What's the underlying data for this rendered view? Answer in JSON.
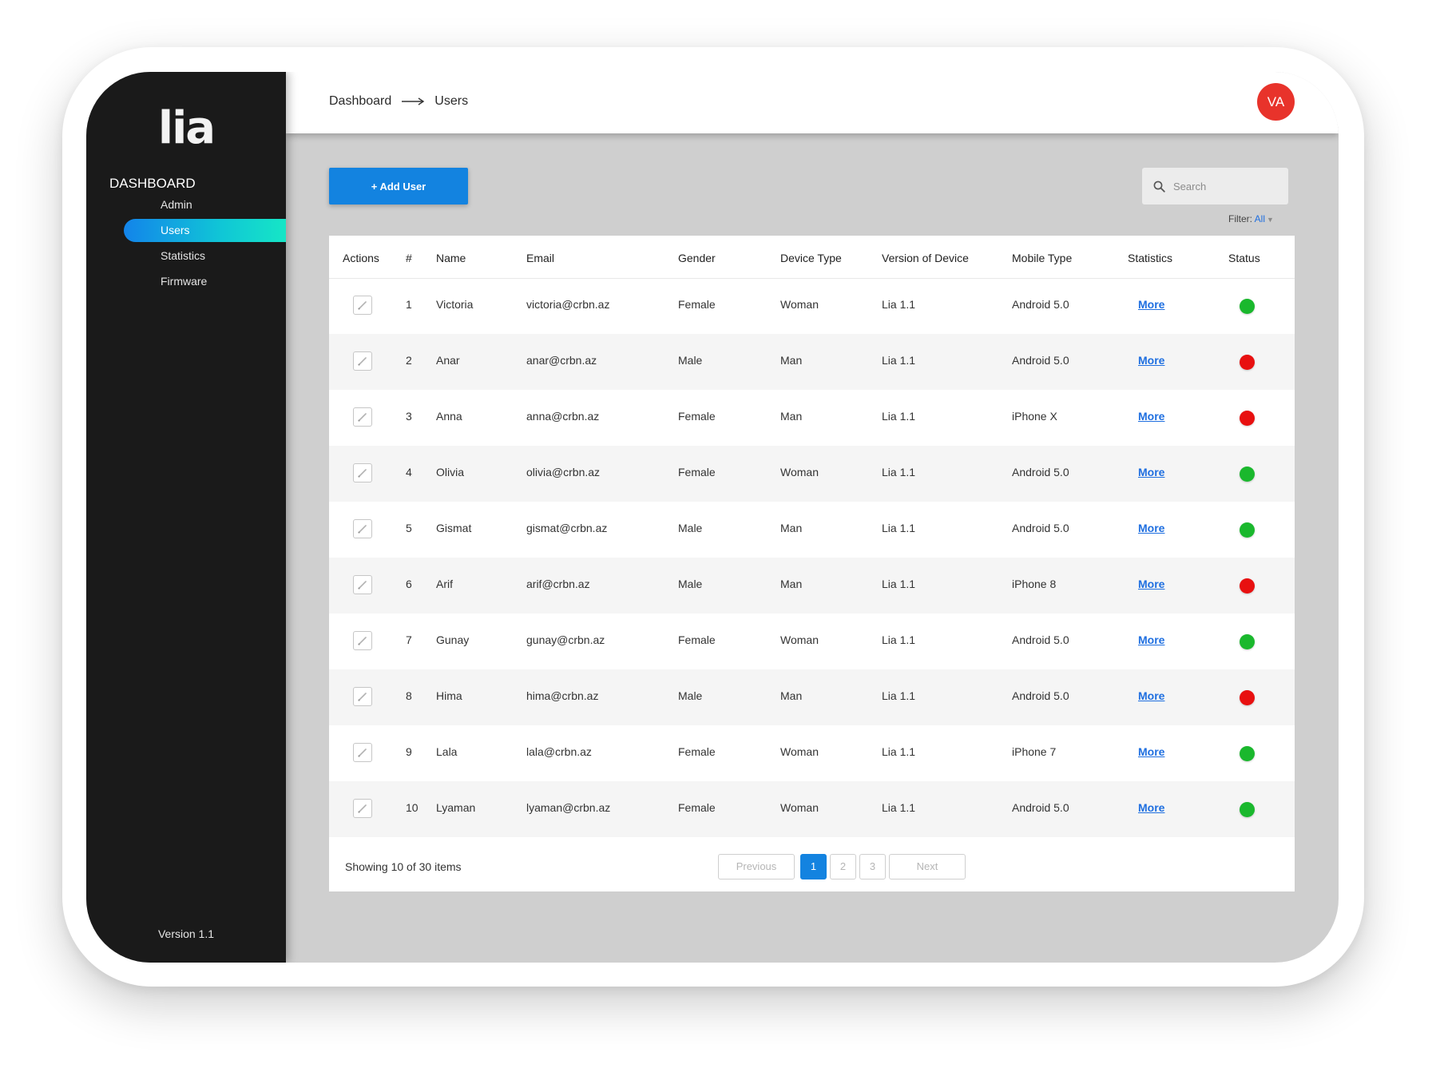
{
  "colors": {
    "accent": "#1383e0",
    "status_online": "#1ab82d",
    "status_offline": "#e81010",
    "avatar": "#e8332b",
    "sidebar": "#1a1a1a"
  },
  "sidebar": {
    "logo": "lia",
    "heading": "DASHBOARD",
    "items": [
      {
        "label": "Admin",
        "active": false
      },
      {
        "label": "Users",
        "active": true
      },
      {
        "label": "Statistics",
        "active": false
      },
      {
        "label": "Firmware",
        "active": false
      }
    ],
    "version": "Version 1.1"
  },
  "header": {
    "breadcrumb": [
      "Dashboard",
      "Users"
    ],
    "avatar_initials": "VA"
  },
  "toolbar": {
    "add_label": "+ Add User",
    "search_placeholder": "Search",
    "filter_label": "Filter:",
    "filter_value": "All"
  },
  "table": {
    "columns": [
      "Actions",
      "#",
      "Name",
      "Email",
      "Gender",
      "Device Type",
      "Version of Device",
      "Mobile Type",
      "Statistics",
      "Status"
    ],
    "rows": [
      {
        "num": "1",
        "name": "Victoria",
        "email": "victoria@crbn.az",
        "gender": "Female",
        "device_type": "Woman",
        "version": "Lia 1.1",
        "mobile": "Android 5.0",
        "stats": "More",
        "status": "online"
      },
      {
        "num": "2",
        "name": "Anar",
        "email": "anar@crbn.az",
        "gender": "Male",
        "device_type": "Man",
        "version": "Lia 1.1",
        "mobile": "Android 5.0",
        "stats": "More",
        "status": "offline"
      },
      {
        "num": "3",
        "name": "Anna",
        "email": "anna@crbn.az",
        "gender": "Female",
        "device_type": "Man",
        "version": "Lia 1.1",
        "mobile": "iPhone X",
        "stats": "More",
        "status": "offline"
      },
      {
        "num": "4",
        "name": "Olivia",
        "email": "olivia@crbn.az",
        "gender": "Female",
        "device_type": "Woman",
        "version": "Lia 1.1",
        "mobile": "Android 5.0",
        "stats": "More",
        "status": "online"
      },
      {
        "num": "5",
        "name": "Gismat",
        "email": "gismat@crbn.az",
        "gender": "Male",
        "device_type": "Man",
        "version": "Lia 1.1",
        "mobile": "Android 5.0",
        "stats": "More",
        "status": "online"
      },
      {
        "num": "6",
        "name": "Arif",
        "email": "arif@crbn.az",
        "gender": "Male",
        "device_type": "Man",
        "version": "Lia 1.1",
        "mobile": "iPhone 8",
        "stats": "More",
        "status": "offline"
      },
      {
        "num": "7",
        "name": "Gunay",
        "email": "gunay@crbn.az",
        "gender": "Female",
        "device_type": "Woman",
        "version": "Lia 1.1",
        "mobile": "Android 5.0",
        "stats": "More",
        "status": "online"
      },
      {
        "num": "8",
        "name": "Hima",
        "email": "hima@crbn.az",
        "gender": "Male",
        "device_type": "Man",
        "version": "Lia 1.1",
        "mobile": "Android 5.0",
        "stats": "More",
        "status": "offline"
      },
      {
        "num": "9",
        "name": "Lala",
        "email": "lala@crbn.az",
        "gender": "Female",
        "device_type": "Woman",
        "version": "Lia 1.1",
        "mobile": "iPhone 7",
        "stats": "More",
        "status": "online"
      },
      {
        "num": "10",
        "name": "Lyaman",
        "email": "lyaman@crbn.az",
        "gender": "Female",
        "device_type": "Woman",
        "version": "Lia 1.1",
        "mobile": "Android 5.0",
        "stats": "More",
        "status": "online"
      }
    ]
  },
  "footer": {
    "showing": "Showing  10 of 30 items",
    "pagination": {
      "previous": "Previous",
      "pages": [
        "1",
        "2",
        "3"
      ],
      "current": "1",
      "next": "Next"
    }
  }
}
